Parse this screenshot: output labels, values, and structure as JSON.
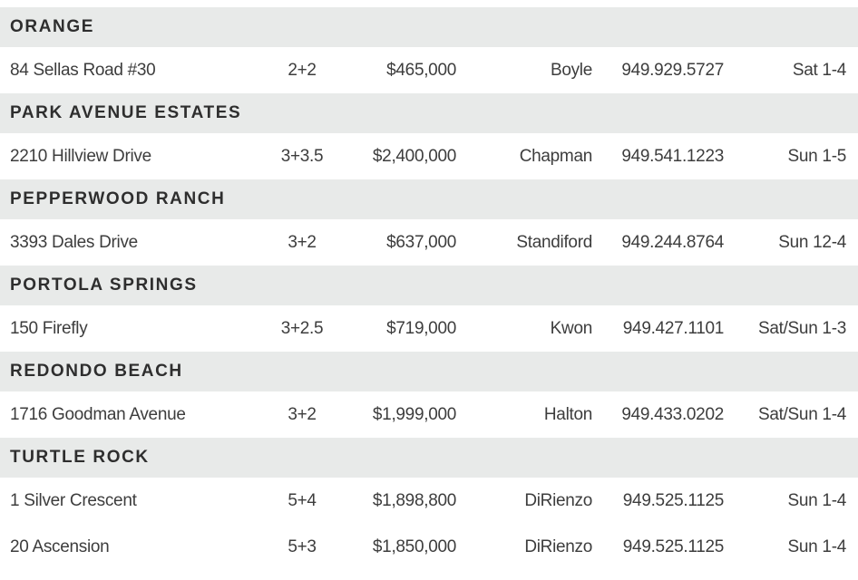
{
  "page": {
    "background_color": "#ffffff",
    "section_header_bg_color": "#e8eae9",
    "section_header_text_color": "#2e2e2e",
    "row_text_color": "#3d3d3d"
  },
  "listings": {
    "columns": [
      "address",
      "beds_baths",
      "price",
      "agent",
      "phone",
      "time"
    ],
    "sections": [
      {
        "name": "ORANGE",
        "rows": [
          {
            "address": "84 Sellas Road #30",
            "beds_baths": "2+2",
            "price": "$465,000",
            "agent": "Boyle",
            "phone": "949.929.5727",
            "time": "Sat 1-4"
          }
        ]
      },
      {
        "name": "PARK AVENUE ESTATES",
        "rows": [
          {
            "address": "2210 Hillview Drive",
            "beds_baths": "3+3.5",
            "price": "$2,400,000",
            "agent": "Chapman",
            "phone": "949.541.1223",
            "time": "Sun 1-5"
          }
        ]
      },
      {
        "name": "PEPPERWOOD RANCH",
        "rows": [
          {
            "address": "3393 Dales Drive",
            "beds_baths": "3+2",
            "price": "$637,000",
            "agent": "Standiford",
            "phone": "949.244.8764",
            "time": "Sun 12-4"
          }
        ]
      },
      {
        "name": "PORTOLA SPRINGS",
        "rows": [
          {
            "address": "150 Firefly",
            "beds_baths": "3+2.5",
            "price": "$719,000",
            "agent": "Kwon",
            "phone": "949.427.1101",
            "time": "Sat/Sun 1-3"
          }
        ]
      },
      {
        "name": "REDONDO BEACH",
        "rows": [
          {
            "address": "1716 Goodman Avenue",
            "beds_baths": "3+2",
            "price": "$1,999,000",
            "agent": "Halton",
            "phone": "949.433.0202",
            "time": "Sat/Sun 1-4"
          }
        ]
      },
      {
        "name": "TURTLE ROCK",
        "rows": [
          {
            "address": "1 Silver Crescent",
            "beds_baths": "5+4",
            "price": "$1,898,800",
            "agent": "DiRienzo",
            "phone": "949.525.1125",
            "time": "Sun 1-4"
          },
          {
            "address": "20 Ascension",
            "beds_baths": "5+3",
            "price": "$1,850,000",
            "agent": "DiRienzo",
            "phone": "949.525.1125",
            "time": "Sun 1-4"
          }
        ]
      }
    ]
  }
}
